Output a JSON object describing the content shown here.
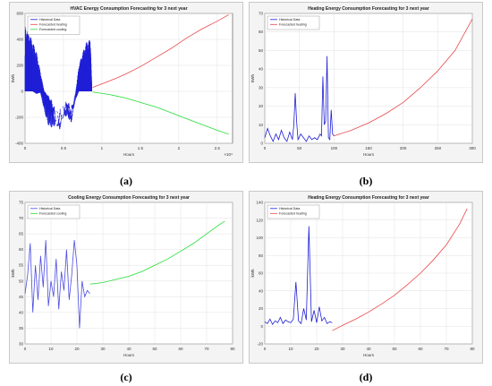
{
  "captions": {
    "a": "(a)",
    "b": "(b)",
    "c": "(c)",
    "d": "(d)"
  },
  "chart_data": [
    {
      "id": "a",
      "type": "line",
      "title": "HVAC Energy Consumption Forecasting for 3 next year",
      "xlabel": "Hours",
      "ylabel": "kWh",
      "x_exponent_label": "×10⁴",
      "xlim": [
        0,
        2.7
      ],
      "ylim": [
        -400,
        600
      ],
      "xticks": [
        0,
        0.5,
        1,
        1.5,
        2,
        2.5
      ],
      "xticklabels": [
        "0",
        "0.5",
        "1",
        "1.5",
        "2",
        "2.5"
      ],
      "yticks": [
        -400,
        -200,
        0,
        200,
        400,
        600
      ],
      "yticklabels": [
        "-400",
        "-200",
        "0",
        "200",
        "400",
        "600"
      ],
      "grid": true,
      "legend_position": "top-left",
      "series": [
        {
          "name": "Historical Data",
          "color": "#1f1fd6",
          "kind": "dense",
          "x": [
            0,
            0.05,
            0.1,
            0.15,
            0.2,
            0.25,
            0.3,
            0.35,
            0.4,
            0.45,
            0.5,
            0.55,
            0.6,
            0.65,
            0.7,
            0.75,
            0.8,
            0.85,
            0.87
          ],
          "y_max": [
            500,
            450,
            380,
            300,
            150,
            0,
            -50,
            -120,
            -250,
            -300,
            -180,
            -120,
            -200,
            -50,
            200,
            300,
            380,
            400,
            30
          ],
          "y_min": [
            0,
            0,
            0,
            -20,
            -10,
            -150,
            -260,
            -280,
            -260,
            -250,
            -200,
            -190,
            -250,
            -80,
            0,
            0,
            0,
            0,
            0
          ]
        },
        {
          "name": "Forecasted heating",
          "color": "#e8474a",
          "x": [
            0.88,
            1.1,
            1.3,
            1.5,
            1.7,
            1.9,
            2.1,
            2.3,
            2.5,
            2.65
          ],
          "y": [
            30,
            80,
            130,
            190,
            260,
            330,
            410,
            480,
            540,
            590
          ]
        },
        {
          "name": "Forecasted cooling",
          "color": "#22dd33",
          "x": [
            0.88,
            1.1,
            1.3,
            1.5,
            1.7,
            1.9,
            2.1,
            2.3,
            2.5,
            2.65
          ],
          "y": [
            -5,
            -25,
            -50,
            -85,
            -120,
            -165,
            -210,
            -255,
            -300,
            -330
          ]
        }
      ]
    },
    {
      "id": "b",
      "type": "line",
      "title": "Heating Energy Consumption Forecasting for 3 next year",
      "xlabel": "Hours",
      "ylabel": "kWh",
      "xlim": [
        0,
        300
      ],
      "ylim": [
        0,
        70
      ],
      "xticks": [
        0,
        50,
        100,
        150,
        200,
        250,
        300
      ],
      "xticklabels": [
        "0",
        "50",
        "100",
        "150",
        "200",
        "250",
        "300"
      ],
      "yticks": [
        0,
        10,
        20,
        30,
        40,
        50,
        60,
        70
      ],
      "yticklabels": [
        "0",
        "10",
        "20",
        "30",
        "40",
        "50",
        "60",
        "70"
      ],
      "grid": true,
      "legend_position": "top-left",
      "series": [
        {
          "name": "Historical Data",
          "color": "#1f1fd6",
          "x": [
            0,
            4,
            8,
            12,
            16,
            20,
            24,
            28,
            32,
            36,
            40,
            42,
            44,
            46,
            48,
            52,
            56,
            60,
            64,
            68,
            72,
            76,
            80,
            82,
            84,
            86,
            88,
            90,
            92,
            94,
            96,
            98,
            100
          ],
          "y": [
            3,
            8,
            4,
            1,
            5,
            2,
            7,
            3,
            1,
            6,
            2,
            10,
            27,
            12,
            2,
            5,
            3,
            1,
            4,
            2,
            3,
            2,
            5,
            4,
            36,
            10,
            12,
            47,
            3,
            2,
            18,
            5,
            4
          ]
        },
        {
          "name": "Forecasted heating",
          "color": "#e8474a",
          "x": [
            100,
            125,
            150,
            175,
            200,
            225,
            250,
            275,
            300
          ],
          "y": [
            4,
            7,
            11,
            16,
            22,
            30,
            39,
            50,
            67
          ]
        }
      ]
    },
    {
      "id": "c",
      "type": "line",
      "title": "Cooling Energy Consumption Forecasting for 3 next year",
      "xlabel": "Hours",
      "ylabel": "kWh",
      "xlim": [
        0,
        80
      ],
      "ylim": [
        30,
        75
      ],
      "xticks": [
        0,
        10,
        20,
        30,
        40,
        50,
        60,
        70,
        80
      ],
      "xticklabels": [
        "0",
        "10",
        "20",
        "30",
        "40",
        "50",
        "60",
        "70",
        "80"
      ],
      "yticks": [
        30,
        35,
        40,
        45,
        50,
        55,
        60,
        65,
        70,
        75
      ],
      "yticklabels": [
        "30",
        "35",
        "40",
        "45",
        "50",
        "55",
        "60",
        "65",
        "70",
        "75"
      ],
      "grid": true,
      "legend_position": "top-left",
      "series": [
        {
          "name": "Historical Data",
          "color": "#4b4be0",
          "x": [
            0,
            1,
            2,
            3,
            4,
            5,
            6,
            7,
            8,
            9,
            10,
            11,
            12,
            13,
            14,
            15,
            16,
            17,
            18,
            19,
            20,
            21,
            22,
            23,
            24,
            25
          ],
          "y": [
            46,
            52,
            62,
            40,
            55,
            44,
            58,
            48,
            63,
            42,
            50,
            45,
            57,
            41,
            53,
            47,
            60,
            44,
            52,
            63,
            55,
            35,
            50,
            45,
            47,
            46
          ]
        },
        {
          "name": "Forecasted cooling",
          "color": "#22dd33",
          "x": [
            25,
            30,
            35,
            40,
            45,
            50,
            55,
            60,
            65,
            70,
            75,
            77
          ],
          "y": [
            49,
            49.5,
            50.5,
            51.5,
            53,
            55,
            57,
            59.5,
            62,
            65,
            68,
            69
          ]
        }
      ]
    },
    {
      "id": "d",
      "type": "line",
      "title": "Heating Energy Consumption Forecasting for 3 next year",
      "xlabel": "Hours",
      "ylabel": "kWh",
      "xlim": [
        0,
        80
      ],
      "ylim": [
        -20,
        140
      ],
      "xticks": [
        0,
        10,
        20,
        30,
        40,
        50,
        60,
        70,
        80
      ],
      "xticklabels": [
        "0",
        "10",
        "20",
        "30",
        "40",
        "50",
        "60",
        "70",
        "80"
      ],
      "yticks": [
        -20,
        0,
        20,
        40,
        60,
        80,
        100,
        120,
        140
      ],
      "yticklabels": [
        "-20",
        "0",
        "20",
        "40",
        "60",
        "80",
        "100",
        "120",
        "140"
      ],
      "grid": true,
      "legend_position": "top-left",
      "series": [
        {
          "name": "Historical Data",
          "color": "#1f1fd6",
          "x": [
            0,
            1,
            2,
            3,
            4,
            5,
            6,
            7,
            8,
            9,
            10,
            11,
            12,
            13,
            14,
            15,
            16,
            17,
            18,
            19,
            20,
            21,
            22,
            23,
            24,
            25,
            26
          ],
          "y": [
            5,
            3,
            8,
            2,
            6,
            4,
            10,
            3,
            7,
            5,
            4,
            8,
            50,
            6,
            3,
            20,
            7,
            113,
            5,
            18,
            4,
            22,
            6,
            10,
            3,
            5,
            4
          ]
        },
        {
          "name": "Forecasted heating",
          "color": "#e8474a",
          "x": [
            26,
            30,
            35,
            40,
            45,
            50,
            55,
            60,
            65,
            70,
            75,
            78
          ],
          "y": [
            -5,
            1,
            8,
            16,
            25,
            35,
            47,
            60,
            75,
            92,
            115,
            133
          ]
        }
      ]
    }
  ]
}
